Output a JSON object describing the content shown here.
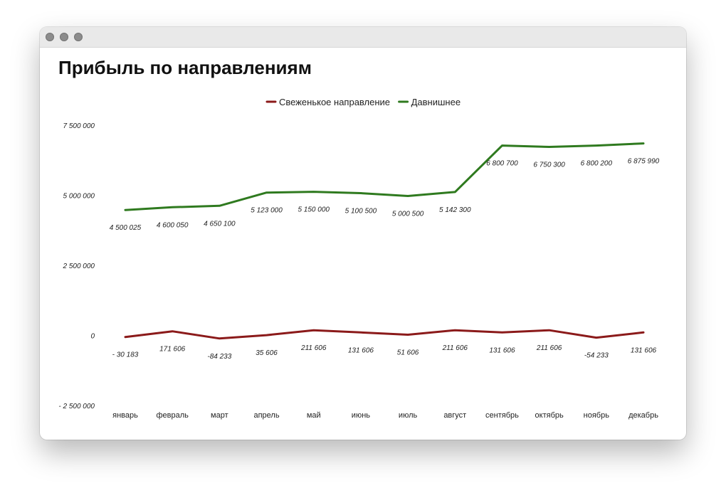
{
  "window": {
    "controls": [
      "window-dot",
      "window-dot",
      "window-dot"
    ]
  },
  "chart_data": {
    "type": "line",
    "title": "Прибыль по направлениям",
    "xlabel": "",
    "ylabel": "",
    "ylim": [
      -2500000,
      7500000
    ],
    "yticks": [
      7500000,
      5000000,
      2500000,
      0,
      -2500000
    ],
    "ytick_labels": [
      "7 500 000",
      "5 000 000",
      "2 500 000",
      "0",
      "- 2 500 000"
    ],
    "grid": false,
    "legend_position": "top-center",
    "categories": [
      "январь",
      "февраль",
      "март",
      "апрель",
      "май",
      "июнь",
      "июль",
      "август",
      "сентябрь",
      "октябрь",
      "ноябрь",
      "декабрь"
    ],
    "series": [
      {
        "name": "Свеженькое направление",
        "color": "#8b1a1a",
        "values": [
          -30183,
          171606,
          -84233,
          35606,
          211606,
          131606,
          51606,
          211606,
          131606,
          211606,
          -54233,
          131606
        ],
        "labels": [
          "- 30 183",
          "171 606",
          "-84 233",
          "35 606",
          "211 606",
          "131 606",
          "51 606",
          "211 606",
          "131 606",
          "211 606",
          "-54 233",
          "131 606"
        ]
      },
      {
        "name": "Давнишнее",
        "color": "#2f7a1f",
        "values": [
          4500025,
          4600050,
          4650100,
          5123000,
          5150000,
          5100500,
          5000500,
          5142300,
          6800700,
          6750300,
          6800200,
          6875990
        ],
        "labels": [
          "4 500 025",
          "4 600 050",
          "4 650 100",
          "5 123 000",
          "5 150 000",
          "5 100 500",
          "5 000 500",
          "5 142 300",
          "6 800 700",
          "6 750 300",
          "6 800 200",
          "6 875 990"
        ]
      }
    ]
  }
}
